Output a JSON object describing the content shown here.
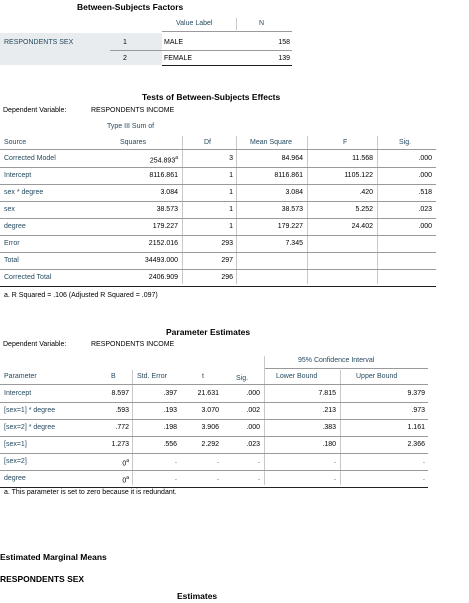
{
  "bsf": {
    "title": "Between-Subjects Factors",
    "col_value_label": "Value Label",
    "col_n": "N",
    "row_label": "RESPONDENTS SEX",
    "rows": [
      {
        "code": "1",
        "label": "MALE",
        "n": "158"
      },
      {
        "code": "2",
        "label": "FEMALE",
        "n": "139"
      }
    ]
  },
  "tbse": {
    "title": "Tests of Between-Subjects Effects",
    "dep_label": "Dependent Variable:",
    "dep_value": "RESPONDENTS INCOME",
    "headers": {
      "source": "Source",
      "ss1": "Type III Sum of",
      "ss2": "Squares",
      "df": "Df",
      "ms": "Mean Square",
      "f": "F",
      "sig": "Sig."
    },
    "rows": [
      {
        "source": "Corrected Model",
        "ss": "254.893",
        "sup": "a",
        "df": "3",
        "ms": "84.964",
        "f": "11.568",
        "sig": ".000"
      },
      {
        "source": "Intercept",
        "ss": "8116.861",
        "sup": "",
        "df": "1",
        "ms": "8116.861",
        "f": "1105.122",
        "sig": ".000"
      },
      {
        "source": "sex * degree",
        "ss": "3.084",
        "sup": "",
        "df": "1",
        "ms": "3.084",
        "f": ".420",
        "sig": ".518"
      },
      {
        "source": "sex",
        "ss": "38.573",
        "sup": "",
        "df": "1",
        "ms": "38.573",
        "f": "5.252",
        "sig": ".023"
      },
      {
        "source": "degree",
        "ss": "179.227",
        "sup": "",
        "df": "1",
        "ms": "179.227",
        "f": "24.402",
        "sig": ".000"
      },
      {
        "source": "Error",
        "ss": "2152.016",
        "sup": "",
        "df": "293",
        "ms": "7.345",
        "f": "",
        "sig": ""
      },
      {
        "source": "Total",
        "ss": "34493.000",
        "sup": "",
        "df": "297",
        "ms": "",
        "f": "",
        "sig": ""
      },
      {
        "source": "Corrected Total",
        "ss": "2406.909",
        "sup": "",
        "df": "296",
        "ms": "",
        "f": "",
        "sig": ""
      }
    ],
    "footnote": "a. R Squared = .106 (Adjusted R Squared = .097)"
  },
  "pe": {
    "title": "Parameter Estimates",
    "dep_label": "Dependent Variable:",
    "dep_value": "RESPONDENTS INCOME",
    "ci_header": "95% Confidence Interval",
    "headers": {
      "param": "Parameter",
      "b": "B",
      "se": "Std. Error",
      "t": "t",
      "sig": "Sig.",
      "lb": "Lower Bound",
      "ub": "Upper Bound"
    },
    "rows": [
      {
        "param": "Intercept",
        "b": "8.597",
        "sup": "",
        "se": ".397",
        "t": "21.631",
        "sig": ".000",
        "lb": "7.815",
        "ub": "9.379"
      },
      {
        "param": "[sex=1] * degree",
        "b": ".593",
        "sup": "",
        "se": ".193",
        "t": "3.070",
        "sig": ".002",
        "lb": ".213",
        "ub": ".973"
      },
      {
        "param": "[sex=2] * degree",
        "b": ".772",
        "sup": "",
        "se": ".198",
        "t": "3.906",
        "sig": ".000",
        "lb": ".383",
        "ub": "1.161"
      },
      {
        "param": "[sex=1]",
        "b": "1.273",
        "sup": "",
        "se": ".556",
        "t": "2.292",
        "sig": ".023",
        "lb": ".180",
        "ub": "2.366"
      },
      {
        "param": "[sex=2]",
        "b": "0",
        "sup": "a",
        "se": ".",
        "t": ".",
        "sig": ".",
        "lb": ".",
        "ub": "."
      },
      {
        "param": "degree",
        "b": "0",
        "sup": "a",
        "se": ".",
        "t": ".",
        "sig": ".",
        "lb": ".",
        "ub": "."
      }
    ],
    "footnote": "a. This parameter is set to zero because it is redundant."
  },
  "emm": {
    "heading": "Estimated Marginal Means",
    "subheading": "RESPONDENTS SEX",
    "estimates": "Estimates"
  }
}
